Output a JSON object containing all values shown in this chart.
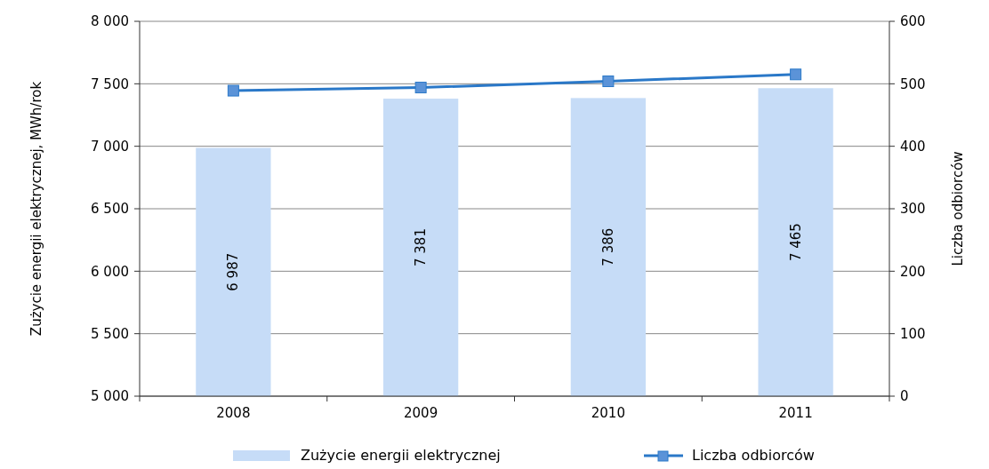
{
  "chart_data": {
    "type": "bar",
    "categories": [
      "2008",
      "2009",
      "2010",
      "2011"
    ],
    "ylabel": "Zużycie energii elektrycznej, MWh/rok",
    "y2label": "Liczba odbiorców",
    "ylim": [
      5000,
      8000
    ],
    "yticks": [
      {
        "value": 5000,
        "label": "5 000"
      },
      {
        "value": 5500,
        "label": "5 500"
      },
      {
        "value": 6000,
        "label": "6 000"
      },
      {
        "value": 6500,
        "label": "6 500"
      },
      {
        "value": 7000,
        "label": "7 000"
      },
      {
        "value": 7500,
        "label": "7 500"
      },
      {
        "value": 8000,
        "label": "8 000"
      }
    ],
    "y2lim": [
      0,
      600
    ],
    "y2ticks": [
      0,
      100,
      200,
      300,
      400,
      500,
      600
    ],
    "grid": "y",
    "legend": "bottom",
    "series": [
      {
        "name": "Zużycie energii elektrycznej",
        "color": "#c6dcf7",
        "values": [
          6987,
          7381,
          7386,
          7465
        ],
        "value_labels": [
          "6 987",
          "7 381",
          "7 386",
          "7 465"
        ]
      },
      {
        "name": "Liczba odbiorców",
        "type": "line",
        "axis": "y2",
        "color": "#2a78c8",
        "marker": "square",
        "values": [
          489,
          494,
          504,
          515
        ]
      }
    ]
  }
}
